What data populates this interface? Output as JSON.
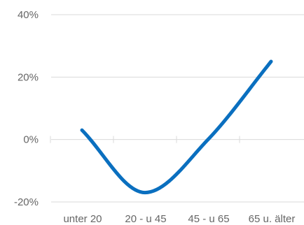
{
  "chart_data": {
    "type": "line",
    "categories": [
      "unter 20",
      "20 - u 45",
      "45 - u 65",
      "65 u. älter"
    ],
    "series": [
      {
        "values": [
          3,
          -17,
          0,
          25
        ],
        "color": "#0a6fbf"
      }
    ],
    "y_ticks": [
      {
        "value": 40,
        "label": "40%"
      },
      {
        "value": 20,
        "label": "20%"
      },
      {
        "value": 0,
        "label": "0%"
      },
      {
        "value": -20,
        "label": "-20%"
      }
    ],
    "ylim": [
      -20,
      40
    ],
    "grid": true,
    "title": "",
    "xlabel": "",
    "ylabel": ""
  }
}
